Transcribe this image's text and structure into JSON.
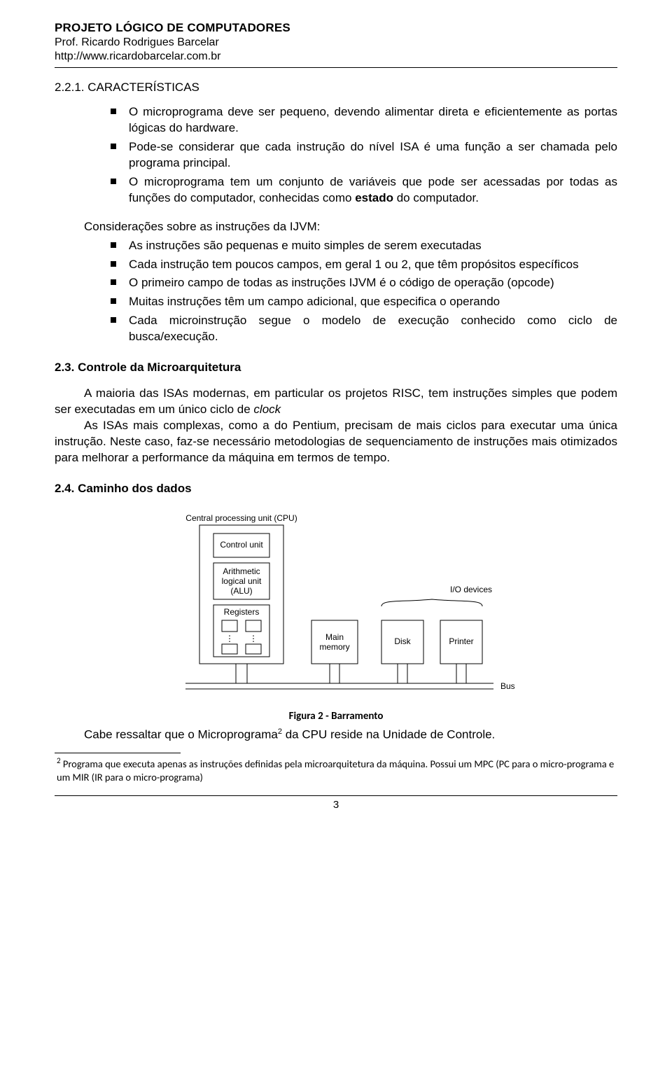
{
  "header": {
    "title": "PROJETO LÓGICO DE COMPUTADORES",
    "prof": "Prof. Ricardo Rodrigues Barcelar",
    "url": "http://www.ricardobarcelar.com.br"
  },
  "section_221": "2.2.1. CARACTERÍSTICAS",
  "bullets_a": [
    "O microprograma deve ser pequeno, devendo alimentar direta e eficientemente as portas lógicas do hardware.",
    "Pode-se considerar que cada instrução do nível ISA é uma função a ser chamada pelo programa principal.",
    "O microprograma tem um conjunto de variáveis que pode ser acessadas por todas as funções do computador, conhecidas como <b>estado</b> do computador."
  ],
  "consider_lead": "Considerações sobre as instruções da IJVM:",
  "bullets_b": [
    "As instruções são pequenas e muito simples de serem executadas",
    "Cada instrução tem poucos campos, em geral 1 ou 2, que têm propósitos específicos",
    "O primeiro campo de todas as instruções IJVM é o código de operação (opcode)",
    "Muitas instruções têm um campo adicional, que especifica o operando",
    "Cada microinstrução segue o modelo de execução conhecido como ciclo de busca/execução."
  ],
  "section_23": "2.3. Controle da Microarquitetura",
  "para_23": {
    "p1a": "A maioria das ISAs modernas, em particular os projetos RISC, tem instruções simples que podem ser executadas em um único ciclo de ",
    "p1b": "clock",
    "p2": "As ISAs mais complexas, como a do Pentium, precisam de mais ciclos para executar uma única instrução. Neste caso, faz-se necessário metodologias de sequenciamento de instruções mais otimizados para melhorar a performance da máquina em termos de tempo."
  },
  "section_24": "2.4. Caminho dos dados",
  "figure": {
    "caption": "Figura 2 - Barramento",
    "labels": {
      "cpu": "Central processing unit (CPU)",
      "control": "Control unit",
      "alu1": "Arithmetic",
      "alu2": "logical unit",
      "alu3": "(ALU)",
      "registers": "Registers",
      "mainmem1": "Main",
      "mainmem2": "memory",
      "disk": "Disk",
      "printer": "Printer",
      "iodev": "I/O devices",
      "bus": "Bus"
    },
    "colors": {
      "stroke": "#000000",
      "bg": "#ffffff",
      "text": "#000000"
    }
  },
  "closing": {
    "pre": "Cabe ressaltar que o Microprograma",
    "sup": "2",
    "post": " da CPU reside na Unidade de Controle."
  },
  "footnote": {
    "num": "2",
    "text": " Programa que executa apenas as instruções definidas pela microarquitetura da máquina. Possui um MPC (PC para o micro-programa e um MIR (IR para o micro-programa)"
  },
  "page_number": "3"
}
